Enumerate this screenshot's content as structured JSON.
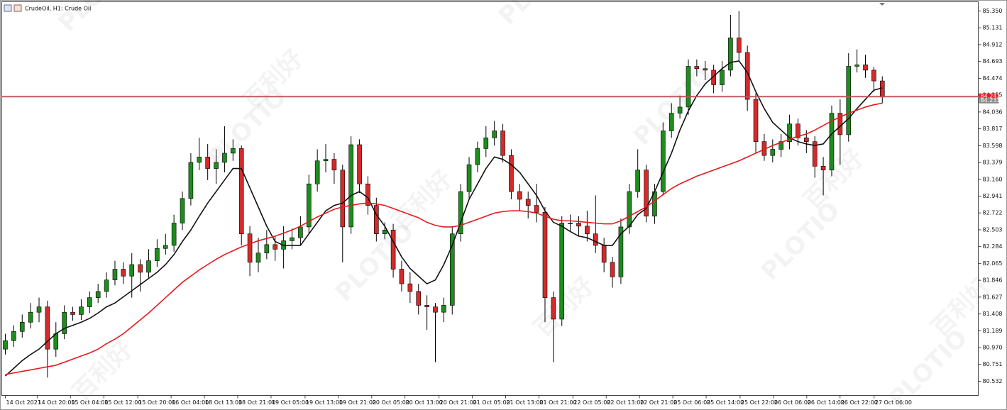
{
  "chart_data": {
    "type": "candlestick",
    "title": "CrudeOil, H1:  Crude Oil",
    "watermark": {
      "brand": "PLOTIO",
      "chinese": "百利好"
    },
    "up_color": "#1e8c1e",
    "down_color": "#d42a2a",
    "ylim": [
      80.347,
      85.47
    ],
    "xlim": [
      -0.42,
      115.38
    ],
    "yticks": [
      {
        "value": 85.35,
        "label": "85.350"
      },
      85.131,
      84.912,
      84.693,
      84.474,
      84.255,
      84.036,
      83.817,
      83.598,
      83.379,
      {
        "value": 83.16,
        "label": "83.160"
      },
      82.941,
      82.722,
      82.503,
      82.284,
      82.065,
      81.846,
      81.627,
      81.408,
      81.189,
      {
        "value": 80.97,
        "label": "80.970"
      },
      80.751,
      80.532
    ],
    "xticks": [
      {
        "value": 0,
        "label": "14 Oct 2021"
      },
      {
        "value": 3.78,
        "label": "14 Oct 20:00"
      },
      {
        "value": 7.73,
        "label": "15 Oct 04:00"
      },
      {
        "value": 11.68,
        "label": "15 Oct 12:00"
      },
      {
        "value": 15.71,
        "label": "15 Oct 20:00"
      },
      {
        "value": 19.66,
        "label": "16 Oct 04:00"
      },
      {
        "value": 23.61,
        "label": "18 Oct 13:00"
      },
      {
        "value": 27.56,
        "label": "18 Oct 21:00"
      },
      {
        "value": 31.51,
        "label": "19 Oct 05:00"
      },
      {
        "value": 35.55,
        "label": "19 Oct 13:00"
      },
      {
        "value": 39.5,
        "label": "19 Oct 21:00"
      },
      {
        "value": 43.45,
        "label": "20 Oct 05:00"
      },
      {
        "value": 47.39,
        "label": "20 Oct 13:00"
      },
      {
        "value": 51.43,
        "label": "20 Oct 21:00"
      },
      {
        "value": 55.38,
        "label": "21 Oct 05:00"
      },
      {
        "value": 59.33,
        "label": "21 Oct 13:00"
      },
      {
        "value": 63.28,
        "label": "21 Oct 21:00"
      },
      {
        "value": 67.31,
        "label": "22 Oct 05:00"
      },
      {
        "value": 71.26,
        "label": "22 Oct 13:00"
      },
      {
        "value": 75.21,
        "label": "22 Oct 21:00"
      },
      {
        "value": 79.16,
        "label": "25 Oct 06:00"
      },
      {
        "value": 83.11,
        "label": "25 Oct 14:00"
      },
      {
        "value": 87.14,
        "label": "25 Oct 22:00"
      },
      {
        "value": 91.09,
        "label": "26 Oct 06:00"
      },
      {
        "value": 95.04,
        "label": "26 Oct 14:00"
      },
      {
        "value": 98.99,
        "label": "26 Oct 22:00"
      },
      {
        "value": 103.03,
        "label": "27 Oct 06:00"
      }
    ],
    "open": [
      80.95,
      81.06,
      81.18,
      81.3,
      81.43,
      81.5,
      80.95,
      81.15,
      81.43,
      81.4,
      81.5,
      81.62,
      81.7,
      81.85,
      81.99,
      81.9,
      82.05,
      81.95,
      82.1,
      82.26,
      82.3,
      82.59,
      82.91,
      83.38,
      83.45,
      83.3,
      83.38,
      83.5,
      83.56,
      82.45,
      82.08,
      82.2,
      82.31,
      82.25,
      82.36,
      82.4,
      82.54,
      83.1,
      83.4,
      83.42,
      83.28,
      82.54,
      83.61,
      83.1,
      82.82,
      82.45,
      82.5,
      81.99,
      81.8,
      81.7,
      81.52,
      81.5,
      81.43,
      81.52,
      82.45,
      83.0,
      83.35,
      83.56,
      83.7,
      83.79,
      83.47,
      83.0,
      82.9,
      82.82,
      82.73,
      81.62,
      81.34,
      82.59,
      82.59,
      82.55,
      82.45,
      82.3,
      82.08,
      81.89,
      82.54,
      83.0,
      83.28,
      82.68,
      83.0,
      83.79,
      84.02,
      84.1,
      84.63,
      84.6,
      84.58,
      84.39,
      84.58,
      85.0,
      84.81,
      84.2,
      83.65,
      83.47,
      83.55,
      83.65,
      83.88,
      83.7,
      83.65,
      83.33,
      83.28,
      84.02,
      83.74,
      84.63,
      84.65,
      84.58,
      84.44
    ],
    "high": [
      81.15,
      81.26,
      81.4,
      81.55,
      81.62,
      81.58,
      81.3,
      81.52,
      81.5,
      81.6,
      81.7,
      81.8,
      81.95,
      82.1,
      82.08,
      82.2,
      82.12,
      82.25,
      82.38,
      82.45,
      82.7,
      83.0,
      83.5,
      83.7,
      83.62,
      83.55,
      83.85,
      83.68,
      83.6,
      82.55,
      82.4,
      82.5,
      82.42,
      82.55,
      82.52,
      82.68,
      83.22,
      83.55,
      83.62,
      83.5,
      83.35,
      83.72,
      83.68,
      83.2,
      82.92,
      82.6,
      82.58,
      82.1,
      81.95,
      81.8,
      81.65,
      81.55,
      81.62,
      82.55,
      83.1,
      83.45,
      83.65,
      83.85,
      83.92,
      83.88,
      83.55,
      83.1,
      83.0,
      83.1,
      82.8,
      81.7,
      82.68,
      82.7,
      82.68,
      82.75,
      82.95,
      82.4,
      82.15,
      82.65,
      83.1,
      83.55,
      83.35,
      83.1,
      83.9,
      84.15,
      84.25,
      84.72,
      84.72,
      84.7,
      84.65,
      84.7,
      85.3,
      85.35,
      84.9,
      84.28,
      83.75,
      83.68,
      83.75,
      84.0,
      83.95,
      83.8,
      83.72,
      83.45,
      84.12,
      84.2,
      84.8,
      84.85,
      84.78,
      84.62,
      84.5
    ],
    "low": [
      80.88,
      80.98,
      81.1,
      81.22,
      81.3,
      80.58,
      80.85,
      81.08,
      81.32,
      81.33,
      81.42,
      81.55,
      81.62,
      81.78,
      81.8,
      81.62,
      81.7,
      81.88,
      82.02,
      82.18,
      82.22,
      82.5,
      82.82,
      83.28,
      83.15,
      83.1,
      83.25,
      83.4,
      82.3,
      81.9,
      81.95,
      82.12,
      82.1,
      82.0,
      82.25,
      82.3,
      82.45,
      83.0,
      83.25,
      83.1,
      82.08,
      82.45,
      82.98,
      82.7,
      82.35,
      82.38,
      81.88,
      81.7,
      81.55,
      81.4,
      81.2,
      80.78,
      81.3,
      81.4,
      82.35,
      82.9,
      83.25,
      83.45,
      83.6,
      83.38,
      82.9,
      82.75,
      82.65,
      82.6,
      81.3,
      80.78,
      81.25,
      82.48,
      82.42,
      82.35,
      82.2,
      81.95,
      81.75,
      81.8,
      82.45,
      82.92,
      82.6,
      82.58,
      82.95,
      83.7,
      83.95,
      84.0,
      84.5,
      84.45,
      84.28,
      84.3,
      84.5,
      84.7,
      84.05,
      83.5,
      83.4,
      83.38,
      83.45,
      83.55,
      83.6,
      83.5,
      83.18,
      82.95,
      83.2,
      83.35,
      83.65,
      84.55,
      84.48,
      84.3,
      84.15
    ],
    "close": [
      81.06,
      81.18,
      81.3,
      81.43,
      81.5,
      80.95,
      81.15,
      81.43,
      81.4,
      81.5,
      81.62,
      81.7,
      81.85,
      81.99,
      81.9,
      82.05,
      81.95,
      82.1,
      82.26,
      82.3,
      82.59,
      82.91,
      83.38,
      83.45,
      83.3,
      83.38,
      83.5,
      83.56,
      82.45,
      82.08,
      82.2,
      82.31,
      82.25,
      82.36,
      82.4,
      82.54,
      83.1,
      83.4,
      83.42,
      83.28,
      82.54,
      83.61,
      83.1,
      82.82,
      82.45,
      82.5,
      81.99,
      81.8,
      81.7,
      81.52,
      81.5,
      81.43,
      81.52,
      82.45,
      83.0,
      83.35,
      83.56,
      83.7,
      83.79,
      83.47,
      83.0,
      82.9,
      82.82,
      82.73,
      81.62,
      81.34,
      82.59,
      82.59,
      82.55,
      82.45,
      82.3,
      82.08,
      81.89,
      82.54,
      83.0,
      83.28,
      82.68,
      83.0,
      83.79,
      84.02,
      84.1,
      84.63,
      84.6,
      84.58,
      84.39,
      84.58,
      85.0,
      84.81,
      84.2,
      83.65,
      83.47,
      83.55,
      83.65,
      83.88,
      83.7,
      83.65,
      83.33,
      83.28,
      84.02,
      83.74,
      84.63,
      84.65,
      84.58,
      84.44,
      84.23
    ],
    "lines": [
      {
        "color": "#111111",
        "values": [
          80.6,
          80.7,
          80.8,
          80.88,
          80.95,
          81.05,
          81.15,
          81.22,
          81.26,
          81.3,
          81.35,
          81.42,
          81.5,
          81.55,
          81.63,
          81.71,
          81.79,
          81.87,
          81.95,
          82.05,
          82.18,
          82.35,
          82.5,
          82.68,
          82.85,
          83.0,
          83.15,
          83.3,
          83.3,
          83.05,
          82.8,
          82.55,
          82.35,
          82.3,
          82.3,
          82.3,
          82.45,
          82.6,
          82.75,
          82.82,
          82.85,
          82.95,
          83.0,
          82.92,
          82.7,
          82.55,
          82.35,
          82.15,
          82.0,
          81.9,
          81.8,
          81.85,
          82.05,
          82.3,
          82.6,
          82.9,
          83.1,
          83.3,
          83.45,
          83.42,
          83.35,
          83.25,
          83.1,
          82.95,
          82.75,
          82.6,
          82.55,
          82.48,
          82.42,
          82.4,
          82.35,
          82.3,
          82.3,
          82.45,
          82.55,
          82.7,
          82.78,
          83.0,
          83.25,
          83.5,
          83.8,
          84.05,
          84.25,
          84.4,
          84.5,
          84.6,
          84.68,
          84.7,
          84.55,
          84.3,
          84.08,
          83.9,
          83.8,
          83.7,
          83.65,
          83.62,
          83.6,
          83.62,
          83.75,
          83.85,
          83.95,
          84.08,
          84.2,
          84.32,
          84.35
        ]
      },
      {
        "color": "#e8191e",
        "values": [
          80.62,
          80.64,
          80.66,
          80.68,
          80.7,
          80.72,
          80.74,
          80.78,
          80.82,
          80.86,
          80.9,
          80.95,
          81.02,
          81.08,
          81.15,
          81.24,
          81.33,
          81.42,
          81.52,
          81.62,
          81.72,
          81.82,
          81.9,
          81.98,
          82.05,
          82.12,
          82.18,
          82.23,
          82.28,
          82.32,
          82.36,
          82.39,
          82.42,
          82.46,
          82.5,
          82.55,
          82.61,
          82.67,
          82.72,
          82.77,
          82.8,
          82.82,
          82.84,
          82.85,
          82.84,
          82.82,
          82.78,
          82.74,
          82.7,
          82.66,
          82.6,
          82.56,
          82.54,
          82.54,
          82.56,
          82.6,
          82.64,
          82.68,
          82.72,
          82.74,
          82.75,
          82.75,
          82.74,
          82.72,
          82.68,
          82.64,
          82.62,
          82.62,
          82.61,
          82.6,
          82.59,
          82.58,
          82.58,
          82.62,
          82.68,
          82.74,
          82.8,
          82.88,
          82.96,
          83.04,
          83.1,
          83.15,
          83.2,
          83.24,
          83.28,
          83.32,
          83.36,
          83.4,
          83.45,
          83.5,
          83.55,
          83.6,
          83.64,
          83.68,
          83.72,
          83.75,
          83.8,
          83.86,
          83.92,
          83.97,
          84.02,
          84.06,
          84.1,
          84.13,
          84.15
        ]
      }
    ],
    "price_lines": [
      {
        "value": 84.241,
        "label": "84.241",
        "color": "#e8191e"
      },
      {
        "value": 84.231,
        "label": "84.231",
        "color": "#8a8a8a"
      }
    ]
  }
}
